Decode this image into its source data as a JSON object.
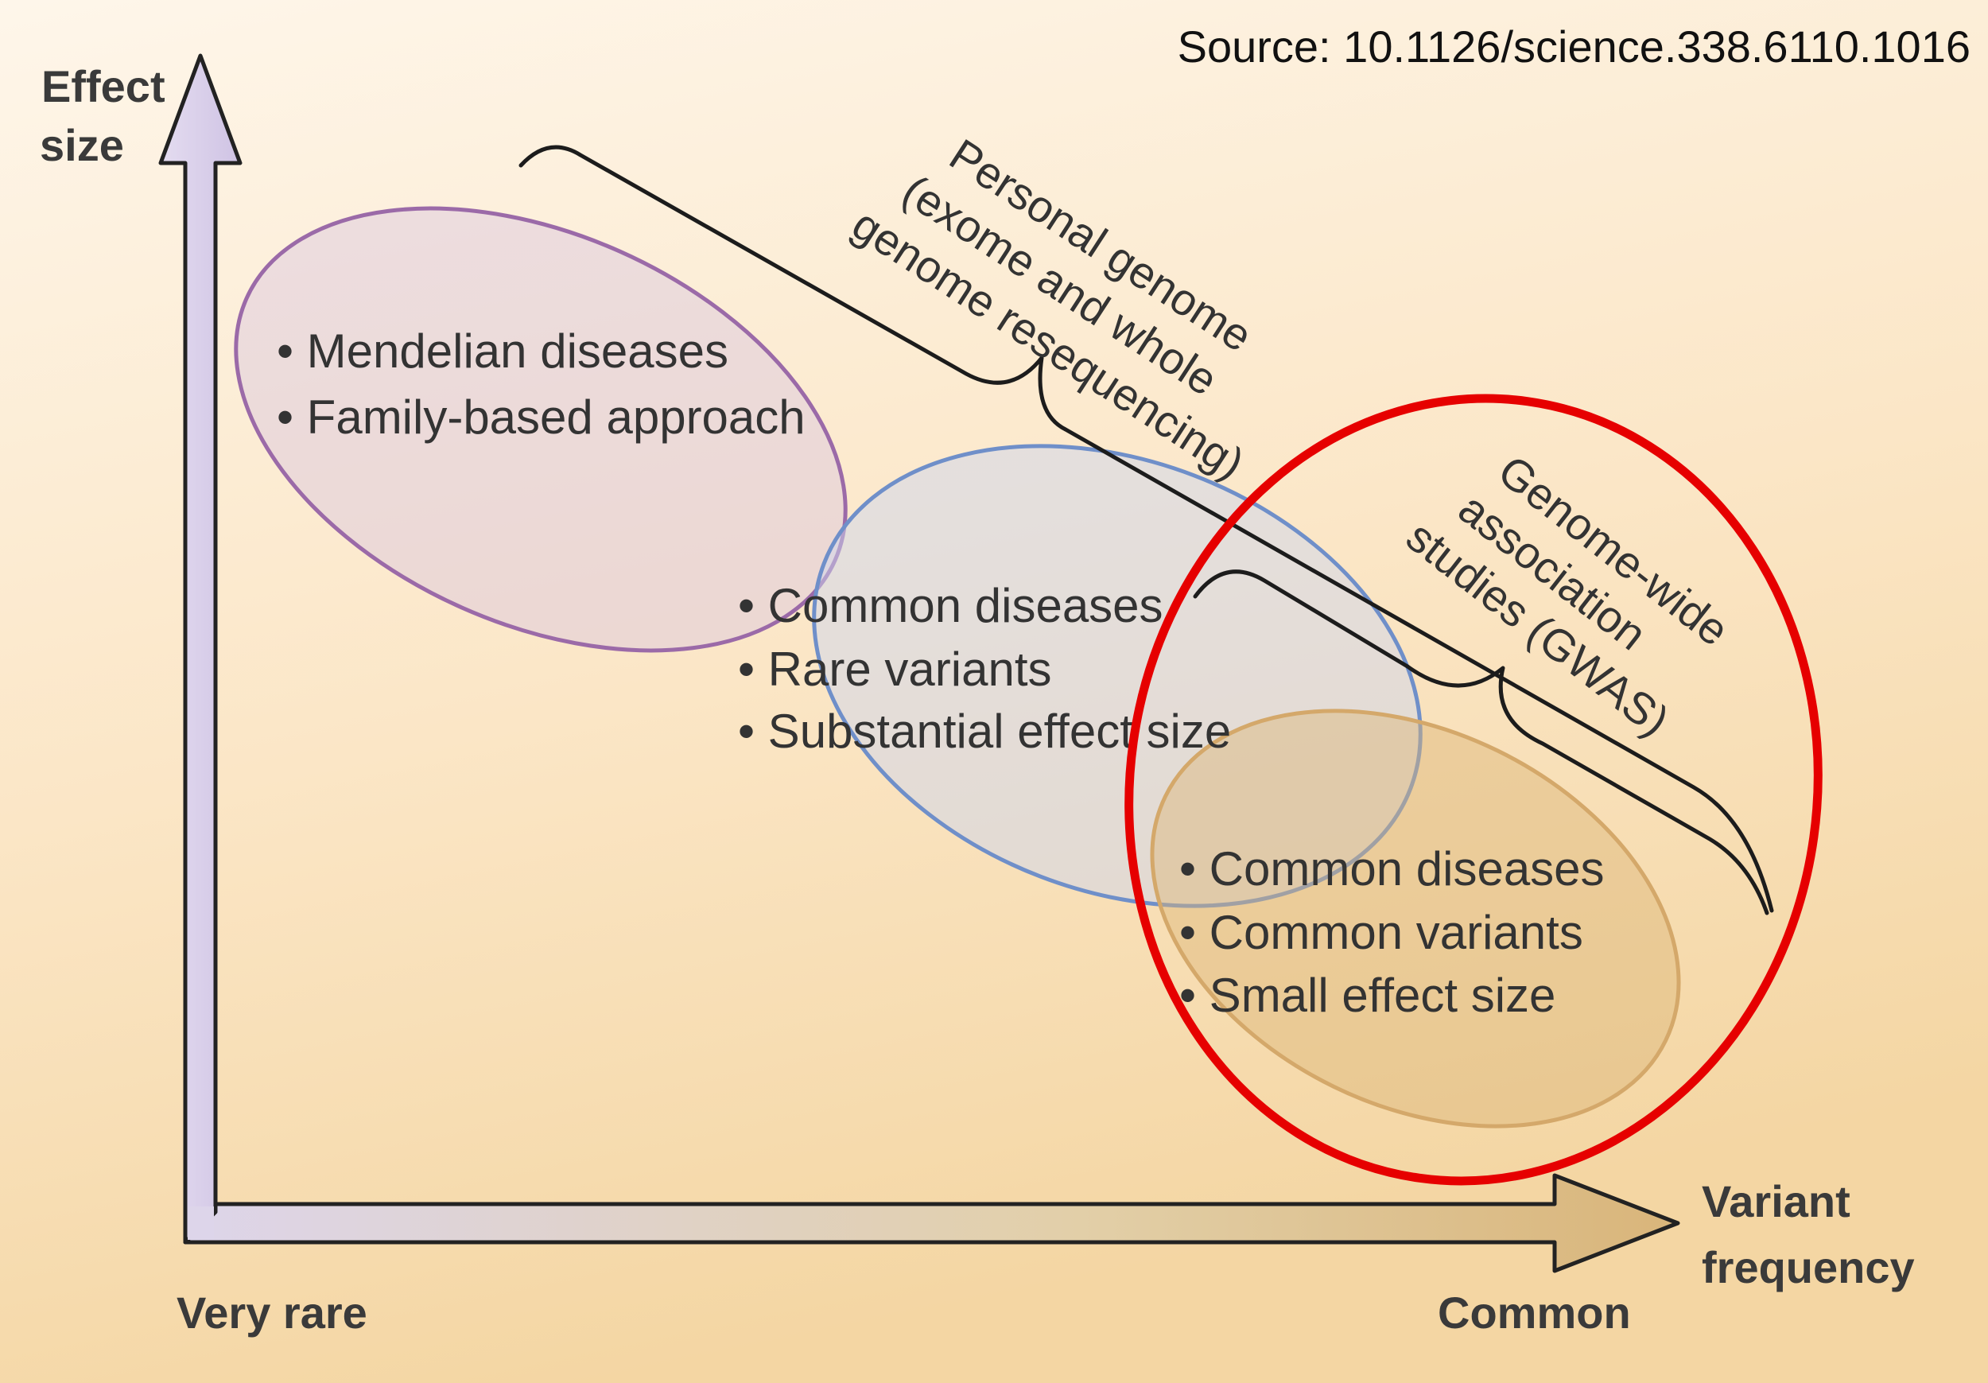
{
  "source": "Source: 10.1126/science.338.6110.1016",
  "y_axis": {
    "label_line1": "Effect",
    "label_line2": "size"
  },
  "x_axis": {
    "label_line1": "Variant",
    "label_line2": "frequency",
    "low_label": "Very rare",
    "high_label": "Common"
  },
  "regions": {
    "mendelian": {
      "items": [
        "• Mendelian diseases",
        "• Family-based approach"
      ]
    },
    "rare": {
      "items": [
        "• Common diseases",
        "• Rare variants",
        "• Substantial effect size"
      ]
    },
    "common": {
      "items": [
        "• Common diseases",
        "• Common variants",
        "• Small effect size"
      ]
    }
  },
  "brackets": {
    "personal": {
      "lines": [
        "Personal genome",
        "(exome and whole",
        "genome resequencing)"
      ]
    },
    "gwas": {
      "lines": [
        "Genome-wide",
        "association",
        "studies (GWAS)"
      ]
    }
  },
  "colors": {
    "background_top": "#fdf3e6",
    "background_bottom": "#f5d9a8",
    "mendelian": "#9b6aa8",
    "rare": "#6f8fc9",
    "common": "#d4a86a",
    "highlight": "#e60000"
  }
}
